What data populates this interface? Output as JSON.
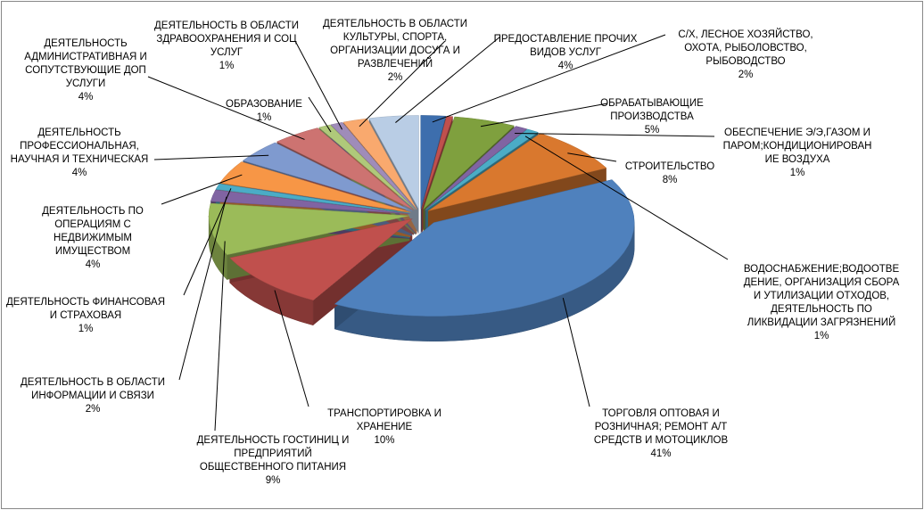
{
  "chart_data": {
    "type": "pie3d",
    "categories": [
      "С/Х, ЛЕСНОЕ ХОЗЯЙСТВО,\nОХОТА, РЫБОЛОВСТВО,\nРЫБОВОДСТВО",
      null,
      "ОБРАБАТЫВАЮЩИЕ\nПРОИЗВОДСТВА",
      "ОБЕСПЕЧЕНИЕ Э/Э,ГАЗОМ И\nПАРОМ;КОНДИЦИОНИРОВАН\nИЕ ВОЗДУХА",
      "ВОДОСНАБЖЕНИЕ;ВОДООТВЕ\nДЕНИЕ, ОРГАНИЗАЦИЯ СБОРА\nИ УТИЛИЗАЦИИ ОТХОДОВ,\nДЕЯТЕЛЬНОСТЬ ПО\nЛИКВИДАЦИИ ЗАГРЯЗНЕНИЙ",
      "СТРОИТЕЛЬСТВО",
      "ТОРГОВЛЯ ОПТОВАЯ И\nРОЗНИЧНАЯ; РЕМОНТ А/Т\nСРЕДСТВ И МОТОЦИКЛОВ",
      "ТРАНСПОРТИРОВКА И\nХРАНЕНИЕ",
      "ДЕЯТЕЛЬНОСТЬ ГОСТИНИЦ И\nПРЕДПРИЯТИЙ\nОБЩЕСТВЕННОГО ПИТАНИЯ",
      "ДЕЯТЕЛЬНОСТЬ В ОБЛАСТИ\nИНФОРМАЦИИ И СВЯЗИ",
      "ДЕЯТЕЛЬНОСТЬ ФИНАНСОВАЯ\nИ СТРАХОВАЯ",
      "ДЕЯТЕЛЬНОСТЬ ПО\nОПЕРАЦИЯМ С\nНЕДВИЖИМЫМ\nИМУЩЕСТВОМ",
      "ДЕЯТЕЛЬНОСТЬ\nПРОФЕССИОНАЛЬНАЯ,\nНАУЧНАЯ И ТЕХНИЧЕСКАЯ",
      "ДЕЯТЕЛЬНОСТЬ\nАДМИНИСТРАТИВНАЯ И\nСОПУТСТВУЮЩИЕ ДОП\nУСЛУГИ",
      "ОБРАЗОВАНИЕ",
      "ДЕЯТЕЛЬНОСТЬ В ОБЛАСТИ\nЗДРАВООХРАНЕНИЯ И СОЦ\nУСЛУГ",
      "ДЕЯТЕЛЬНОСТЬ В ОБЛАСТИ\nКУЛЬТУРЫ, СПОРТА,\nОРГАНИЗАЦИИ ДОСУГА И\nРАЗВЛЕЧЕНИЙ",
      "ПРЕДОСТАВЛЕНИЕ ПРОЧИХ\nВИДОВ УСЛУГ"
    ],
    "values": [
      2,
      0.5,
      5,
      1,
      1,
      8,
      41,
      10,
      9,
      2,
      1,
      4,
      4,
      4,
      1,
      1,
      2,
      4
    ],
    "value_labels": [
      "2%",
      null,
      "5%",
      "1%",
      "1%",
      "8%",
      "41%",
      "10%",
      "9%",
      "2%",
      "1%",
      "4%",
      "4%",
      "4%",
      "1%",
      "1%",
      "2%",
      "4%"
    ],
    "colors": [
      "#3D6EAD",
      "#C0504D",
      "#7FA03E",
      "#8064A2",
      "#4BACC6",
      "#D9782E",
      "#4F81BD",
      "#C0504D",
      "#9BBB59",
      "#8064A2",
      "#4BACC6",
      "#F79646",
      "#7F9ACF",
      "#CD7371",
      "#AFC97A",
      "#9F8CB9",
      "#F9A96E",
      "#B9CDE5"
    ]
  }
}
